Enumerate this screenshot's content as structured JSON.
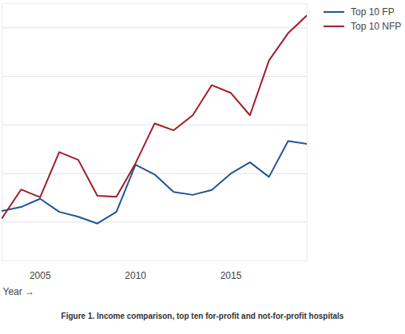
{
  "chart_data": {
    "type": "line",
    "caption": "Figure 1. Income comparison, top ten for-profit and not-for-profit hospitals",
    "x_label": "Year",
    "x": [
      2003,
      2004,
      2005,
      2006,
      2007,
      2008,
      2009,
      2010,
      2011,
      2012,
      2013,
      2014,
      2015,
      2016,
      2017,
      2018,
      2019
    ],
    "series": [
      {
        "name": "Top 10 FP",
        "color": "#1f5596",
        "values": [
          1.23,
          1.31,
          1.48,
          1.21,
          1.11,
          0.97,
          1.21,
          2.18,
          1.98,
          1.62,
          1.56,
          1.66,
          2.0,
          2.23,
          1.93,
          2.67,
          2.61
        ]
      },
      {
        "name": "Top 10 NFP",
        "color": "#a11c28",
        "values": [
          1.08,
          1.67,
          1.51,
          2.44,
          2.28,
          1.54,
          1.52,
          2.21,
          3.03,
          2.89,
          3.2,
          3.82,
          3.66,
          3.2,
          4.33,
          4.89,
          5.26
        ]
      }
    ],
    "xlim": [
      2003,
      2019
    ],
    "xticks": [
      2005,
      2010,
      2015
    ],
    "ylim": [
      0.2,
      5.5
    ],
    "yticks": [
      1,
      2,
      3,
      4,
      5
    ],
    "grid": true,
    "legend": "top-right",
    "tick_labels": "x"
  }
}
